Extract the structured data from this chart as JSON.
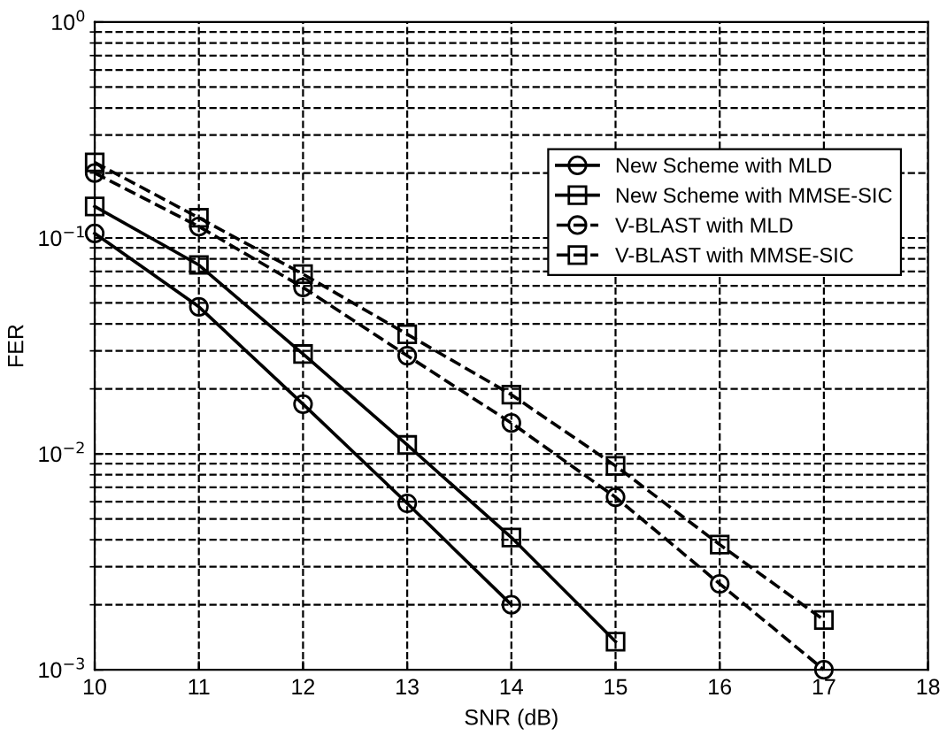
{
  "chart_data": {
    "type": "line",
    "xlabel": "SNR (dB)",
    "ylabel": "FER",
    "log": "y",
    "grid": true,
    "legend": "top right",
    "xlim": [
      10,
      18
    ],
    "xticks": [
      10,
      11,
      12,
      13,
      14,
      15,
      16,
      17,
      18
    ],
    "ylim": [
      0.001,
      1
    ],
    "yticks": [
      {
        "value": 0.001,
        "label": "10$^{−3}$"
      },
      {
        "value": 0.01,
        "label": "10$^{−2}$"
      },
      {
        "value": 0.1,
        "label": "10$^{−1}$"
      },
      {
        "value": 1,
        "label": "10$^{0}$"
      }
    ],
    "series": [
      {
        "name": "New Scheme with MLD",
        "color": "#000000",
        "marker": "circle",
        "line_style": "solid",
        "x": [
          10,
          11,
          12,
          13,
          14
        ],
        "values": [
          0.105,
          0.048,
          0.017,
          0.0059,
          0.002
        ]
      },
      {
        "name": "New Scheme with MMSE-SIC",
        "color": "#000000",
        "marker": "square",
        "line_style": "solid",
        "x": [
          10,
          11,
          12,
          13,
          14,
          15
        ],
        "values": [
          0.14,
          0.075,
          0.029,
          0.011,
          0.0041,
          0.00135
        ]
      },
      {
        "name": "V-BLAST with MLD",
        "color": "#000000",
        "marker": "circle",
        "line_style": "dashed",
        "x": [
          10,
          11,
          12,
          13,
          14,
          15,
          16,
          17
        ],
        "values": [
          0.2,
          0.113,
          0.059,
          0.0285,
          0.0139,
          0.0063,
          0.0025,
          0.001
        ]
      },
      {
        "name": "V-BLAST with MMSE-SIC",
        "color": "#000000",
        "marker": "square",
        "line_style": "dashed",
        "x": [
          10,
          11,
          12,
          13,
          14,
          15,
          16,
          17
        ],
        "values": [
          0.224,
          0.124,
          0.068,
          0.0358,
          0.0188,
          0.0088,
          0.0038,
          0.0017
        ]
      }
    ]
  }
}
